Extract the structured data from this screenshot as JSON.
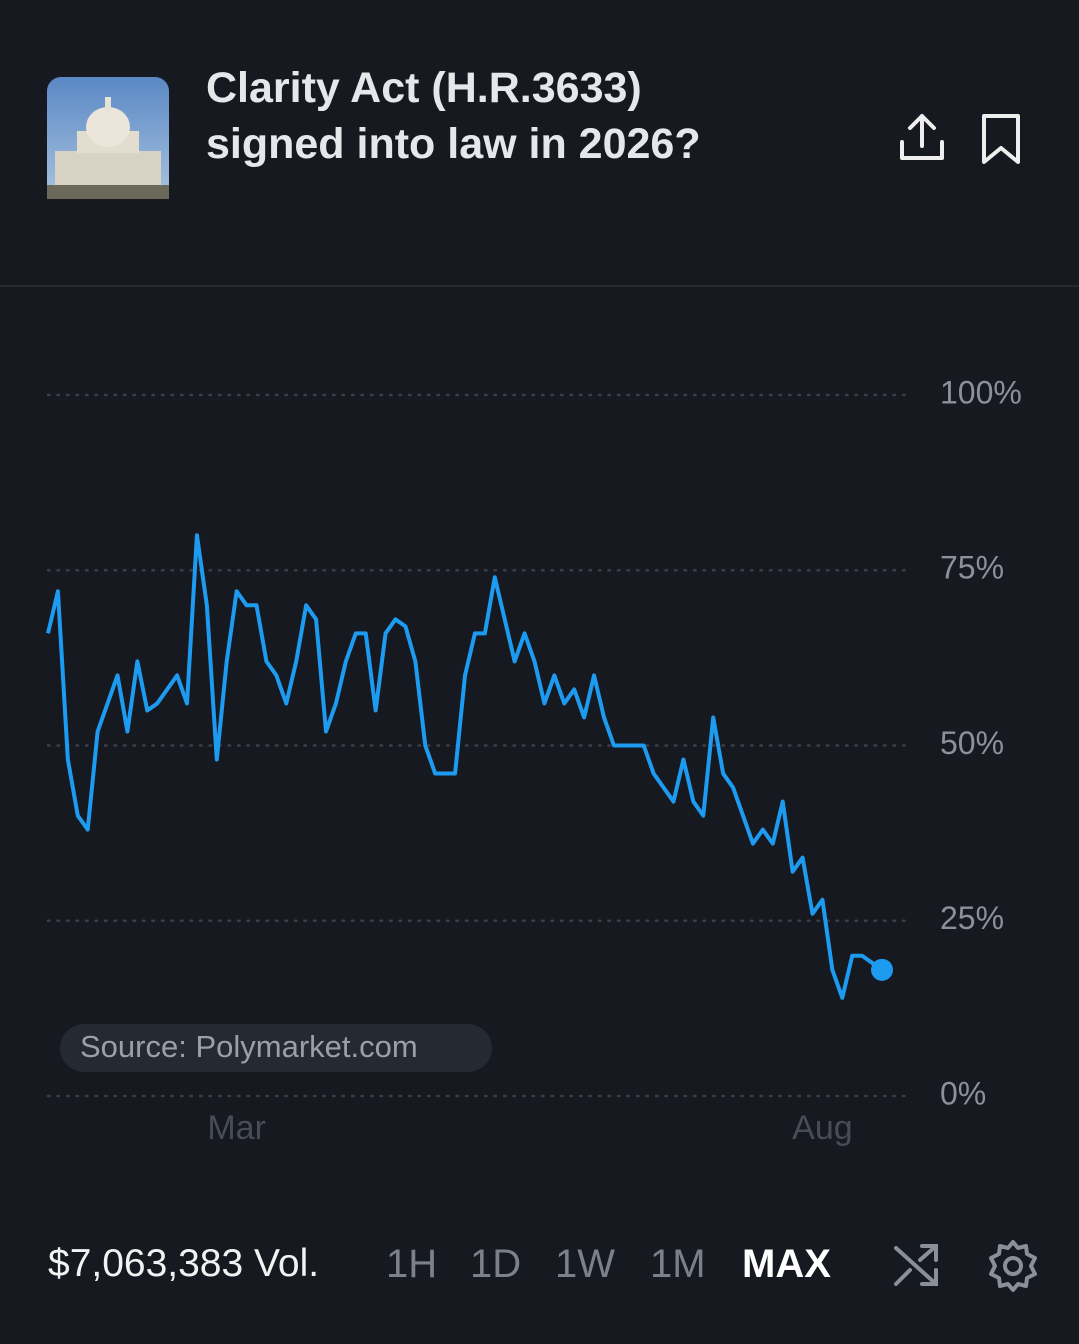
{
  "header": {
    "title": "Clarity Act (H.R.3633) signed into law in 2026?"
  },
  "chart_data": {
    "type": "line",
    "categories": [
      null,
      null,
      null,
      null,
      null,
      null,
      null,
      null,
      null,
      null,
      null,
      null,
      null,
      null,
      null,
      null,
      null,
      null,
      null,
      "Mar",
      null,
      null,
      null,
      null,
      null,
      null,
      null,
      null,
      null,
      null,
      null,
      null,
      null,
      null,
      null,
      null,
      null,
      null,
      null,
      null,
      null,
      null,
      null,
      null,
      null,
      null,
      null,
      null,
      null,
      null,
      null,
      null,
      null,
      null,
      null,
      null,
      null,
      null,
      null,
      null,
      null,
      null,
      null,
      null,
      null,
      null,
      null,
      null,
      null,
      null,
      null,
      null,
      null,
      null,
      null,
      null,
      null,
      null,
      "Aug",
      null,
      null,
      null,
      null,
      null,
      null
    ],
    "values": [
      66,
      72,
      48,
      40,
      38,
      52,
      56,
      60,
      52,
      62,
      55,
      56,
      58,
      60,
      56,
      80,
      70,
      48,
      62,
      72,
      70,
      70,
      62,
      60,
      56,
      62,
      70,
      68,
      52,
      56,
      62,
      66,
      66,
      55,
      66,
      68,
      67,
      62,
      50,
      46,
      46,
      46,
      60,
      66,
      66,
      74,
      68,
      62,
      66,
      62,
      56,
      60,
      56,
      58,
      54,
      60,
      54,
      50,
      50,
      50,
      50,
      46,
      44,
      42,
      48,
      42,
      40,
      54,
      46,
      44,
      40,
      36,
      38,
      36,
      42,
      32,
      34,
      26,
      28,
      18,
      14,
      20,
      20,
      19,
      18
    ],
    "color": "#1d9bf0",
    "ylim": [
      0,
      100
    ],
    "yticks": [
      {
        "value": 0,
        "label": "0%"
      },
      {
        "value": 25,
        "label": "25%"
      },
      {
        "value": 50,
        "label": "50%"
      },
      {
        "value": 75,
        "label": "75%"
      },
      {
        "value": 100,
        "label": "100%"
      }
    ],
    "grid": true,
    "source": "Source: Polymarket.com"
  },
  "footer": {
    "volume": "$7,063,383 Vol.",
    "ranges": [
      "1H",
      "1D",
      "1W",
      "1M",
      "MAX"
    ]
  }
}
